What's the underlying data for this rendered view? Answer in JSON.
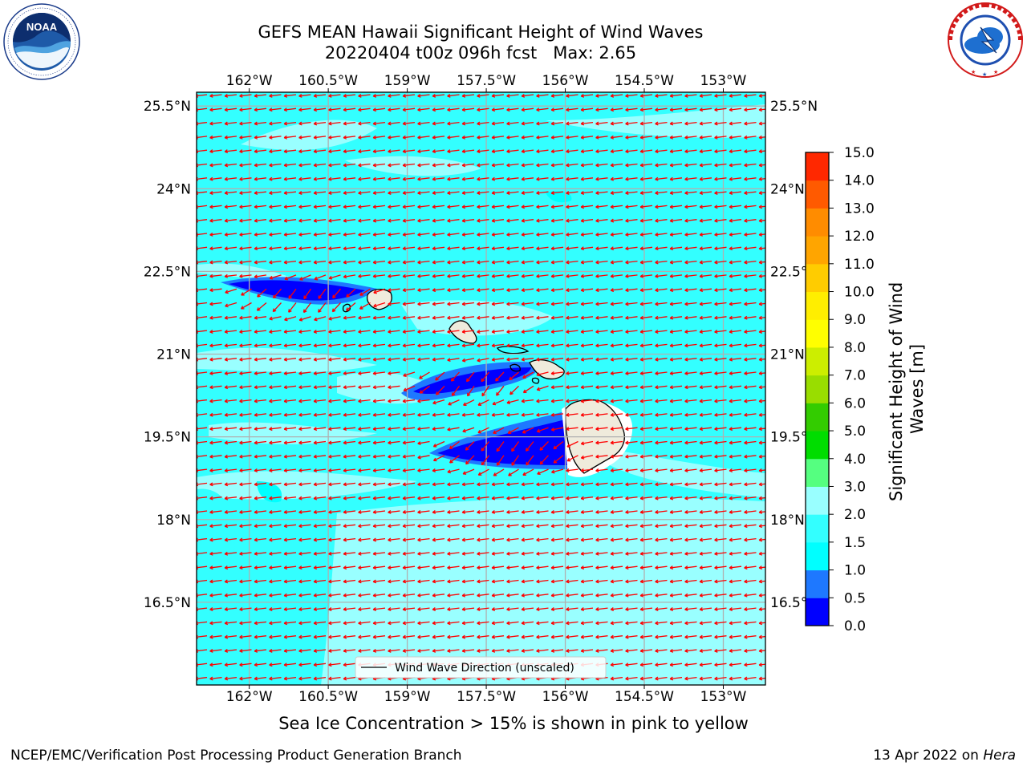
{
  "header": {
    "title_line1": "GEFS MEAN Hawaii Significant Height of Wind Waves",
    "title_line2": "20220404 t00z 096h fcst   Max: 2.65"
  },
  "logos": {
    "left": {
      "icon": "noaa-logo",
      "text": "NOAA",
      "ring_text": "NATIONAL OCEANIC AND ATMOSPHERIC ADMINISTRATION · U.S. DEPARTMENT OF COMMERCE"
    },
    "right": {
      "icon": "nws-logo",
      "ring_text": "NATIONAL WEATHER SERVICE"
    }
  },
  "map": {
    "lon_ticks": [
      "162°W",
      "160.5°W",
      "159°W",
      "157.5°W",
      "156°W",
      "154.5°W",
      "153°W"
    ],
    "lon_values": [
      -162,
      -160.5,
      -159,
      -157.5,
      -156,
      -154.5,
      -153
    ],
    "lat_ticks": [
      "25.5°N",
      "24°N",
      "22.5°N",
      "21°N",
      "19.5°N",
      "18°N",
      "16.5°N"
    ],
    "lat_values": [
      25.5,
      24,
      22.5,
      21,
      19.5,
      18,
      16.5
    ],
    "lon_range": [
      -163,
      -152.2
    ],
    "lat_range": [
      15,
      25.75
    ],
    "gridlines": true,
    "arrow_color": "#ff0000",
    "legend_label": "Wind Wave Direction (unscaled)",
    "legend_placement": "bottom-center",
    "land_color": "#efebdc",
    "base_field_color": "#33ffff"
  },
  "colorbar": {
    "label": "Significant Height of Wind Waves [m]",
    "label_lines": [
      "Significant Height of Wind",
      "Waves [m]"
    ],
    "ticks": [
      "0.0",
      "0.5",
      "1.0",
      "1.5",
      "2.0",
      "3.0",
      "4.0",
      "5.0",
      "6.0",
      "7.0",
      "8.0",
      "9.0",
      "10.0",
      "11.0",
      "12.0",
      "13.0",
      "14.0",
      "15.0"
    ],
    "colors": [
      "#0000ff",
      "#1e78ff",
      "#00ffff",
      "#33ffff",
      "#99ffff",
      "#55ff80",
      "#00dd00",
      "#33cc00",
      "#99dd00",
      "#ccee00",
      "#ffff00",
      "#ffee00",
      "#ffcc00",
      "#ffa500",
      "#ff8c00",
      "#ff5a00",
      "#ff2800"
    ]
  },
  "ice_note": "Sea Ice Concentration > 15% is shown in pink to yellow",
  "footer": {
    "left": "NCEP/EMC/Verification Post Processing Product Generation Branch",
    "right_prefix": "13 Apr 2022 on ",
    "right_host": "Hera"
  }
}
